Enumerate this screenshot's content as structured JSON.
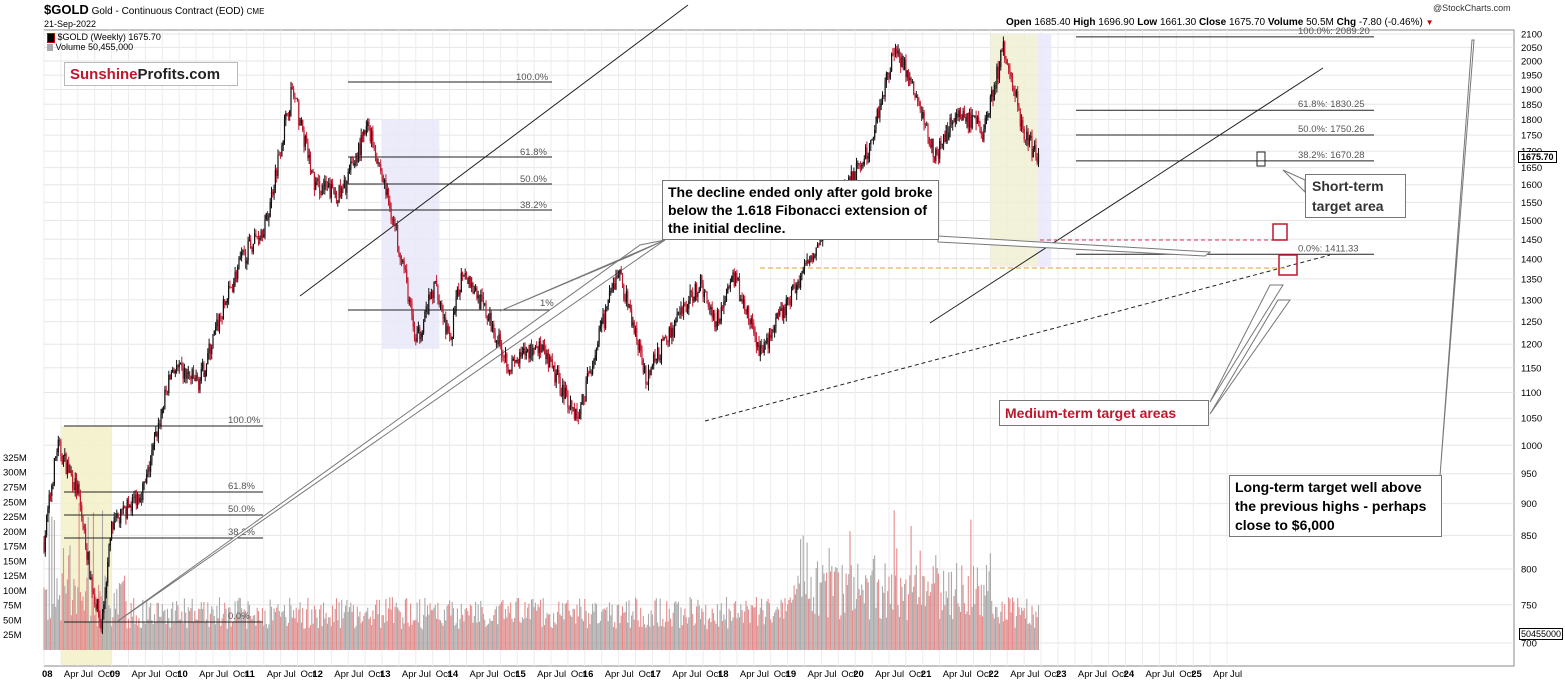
{
  "header": {
    "symbol": "$GOLD",
    "description": "Gold - Continuous Contract (EOD)",
    "exchange": "CME",
    "date": "21-Sep-2022",
    "credit": "@StockCharts.com",
    "legend_price": "$GOLD (Weekly) 1675.70",
    "legend_volume": "Volume 50,455,000",
    "quote": {
      "open_label": "Open",
      "open": "1685.40",
      "high_label": "High",
      "high": "1696.90",
      "low_label": "Low",
      "low": "1661.30",
      "close_label": "Close",
      "close": "1675.70",
      "volume_label": "Volume",
      "volume": "50.5M",
      "chg_label": "Chg",
      "chg": "-7.80 (-0.46%)"
    }
  },
  "logo": {
    "part1": "Sunshine",
    "part2": "Profits.com"
  },
  "annotations": {
    "decline": "The decline ended only after gold broke below the 1.618 Fibonacci extension of the initial decline.",
    "short_term": "Short-term target area",
    "medium_term": "Medium-term target areas",
    "long_term": "Long-term target well above the previous highs - perhaps close to $6,000"
  },
  "chart_data": {
    "type": "candlestick",
    "title": "$GOLD Gold - Continuous Contract (EOD)",
    "interval": "Weekly",
    "last_close": 1675.7,
    "last_volume": 50455000,
    "price_axis": {
      "ticks": [
        2100,
        2050,
        2000,
        1950,
        1900,
        1850,
        1800,
        1750,
        1700,
        1650,
        1600,
        1550,
        1500,
        1450,
        1400,
        1350,
        1300,
        1250,
        1200,
        1150,
        1100,
        1050,
        1000,
        950,
        900,
        850,
        800,
        750,
        700
      ],
      "scale": "log",
      "last_label": "1675.70"
    },
    "volume_axis": {
      "ticks": [
        "325M",
        "300M",
        "275M",
        "250M",
        "225M",
        "200M",
        "175M",
        "150M",
        "125M",
        "100M",
        "75M",
        "50M",
        "25M"
      ],
      "last_label": "50455000"
    },
    "x_axis": {
      "labels": [
        "08",
        "Apr",
        "Jul",
        "Oct",
        "09",
        "Apr",
        "Jul",
        "Oct",
        "10",
        "Apr",
        "Jul",
        "Oct",
        "11",
        "Apr",
        "Jul",
        "Oct",
        "12",
        "Apr",
        "Jul",
        "Oct",
        "13",
        "Apr",
        "Jul",
        "Oct",
        "14",
        "Apr",
        "Jul",
        "Oct",
        "15",
        "Apr",
        "Jul",
        "Oct",
        "16",
        "Apr",
        "Jul",
        "Oct",
        "17",
        "Apr",
        "Jul",
        "Oct",
        "18",
        "Apr",
        "Jul",
        "Oct",
        "19",
        "Apr",
        "Jul",
        "Oct",
        "20",
        "Apr",
        "Jul",
        "Oct",
        "21",
        "Apr",
        "Jul",
        "Oct",
        "22",
        "Apr",
        "Jul",
        "Oct",
        "23",
        "Apr",
        "Jul",
        "Oct",
        "24",
        "Apr",
        "Jul",
        "Oct",
        "25",
        "Apr",
        "Jul"
      ]
    },
    "price_path": [
      {
        "x": 2008.0,
        "y": 840
      },
      {
        "x": 2008.2,
        "y": 1000
      },
      {
        "x": 2008.5,
        "y": 920
      },
      {
        "x": 2008.7,
        "y": 780
      },
      {
        "x": 2008.85,
        "y": 720
      },
      {
        "x": 2009.0,
        "y": 860
      },
      {
        "x": 2009.5,
        "y": 930
      },
      {
        "x": 2009.9,
        "y": 1150
      },
      {
        "x": 2010.3,
        "y": 1120
      },
      {
        "x": 2010.9,
        "y": 1390
      },
      {
        "x": 2011.3,
        "y": 1500
      },
      {
        "x": 2011.67,
        "y": 1900
      },
      {
        "x": 2012.0,
        "y": 1600
      },
      {
        "x": 2012.4,
        "y": 1570
      },
      {
        "x": 2012.8,
        "y": 1780
      },
      {
        "x": 2013.3,
        "y": 1400
      },
      {
        "x": 2013.5,
        "y": 1200
      },
      {
        "x": 2013.8,
        "y": 1340
      },
      {
        "x": 2014.0,
        "y": 1200
      },
      {
        "x": 2014.2,
        "y": 1380
      },
      {
        "x": 2014.9,
        "y": 1150
      },
      {
        "x": 2015.3,
        "y": 1200
      },
      {
        "x": 2015.9,
        "y": 1050
      },
      {
        "x": 2016.5,
        "y": 1370
      },
      {
        "x": 2016.9,
        "y": 1130
      },
      {
        "x": 2017.7,
        "y": 1340
      },
      {
        "x": 2017.95,
        "y": 1250
      },
      {
        "x": 2018.2,
        "y": 1360
      },
      {
        "x": 2018.6,
        "y": 1180
      },
      {
        "x": 2019.0,
        "y": 1290
      },
      {
        "x": 2019.6,
        "y": 1500
      },
      {
        "x": 2020.2,
        "y": 1700
      },
      {
        "x": 2020.6,
        "y": 2060
      },
      {
        "x": 2021.2,
        "y": 1680
      },
      {
        "x": 2021.5,
        "y": 1830
      },
      {
        "x": 2021.9,
        "y": 1760
      },
      {
        "x": 2022.2,
        "y": 2050
      },
      {
        "x": 2022.5,
        "y": 1750
      },
      {
        "x": 2022.72,
        "y": 1675.7
      }
    ],
    "fibonacci": [
      {
        "label": "100.0%: 2089.20",
        "value": 2089.2
      },
      {
        "label": "61.8%: 1830.25",
        "value": 1830.25
      },
      {
        "label": "50.0%: 1750.26",
        "value": 1750.26
      },
      {
        "label": "38.2%: 1670.28",
        "value": 1670.28
      },
      {
        "label": "0.0%: 1411.33",
        "value": 1411.33
      }
    ],
    "fib_labels_2011": [
      "100.0%",
      "61.8%",
      "50.0%",
      "38.2%"
    ],
    "fib_labels_2008": [
      "100.0%",
      "61.8%",
      "50.0%",
      "38.2%",
      "0.0%"
    ],
    "fib_label_2013": "1%",
    "legend": "none",
    "grid": true
  }
}
